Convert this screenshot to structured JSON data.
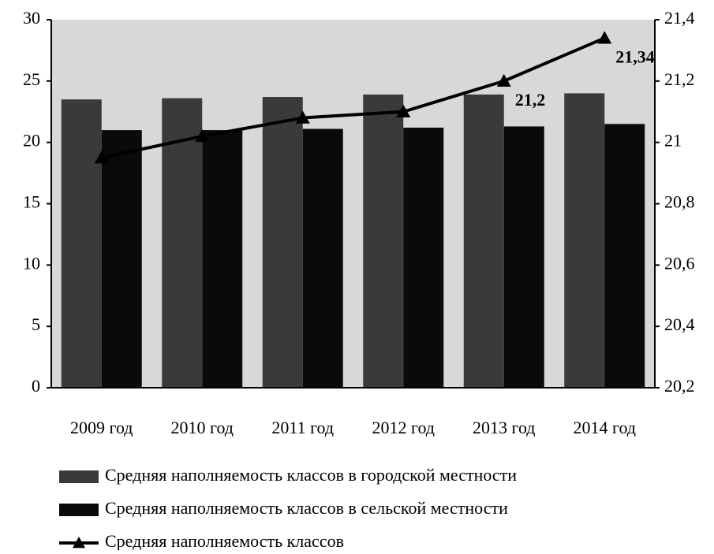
{
  "chart_data": {
    "type": "bar_line",
    "categories": [
      "2009 год",
      "2010 год",
      "2011 год",
      "2012 год",
      "2013 год",
      "2014 год"
    ],
    "series": [
      {
        "name": "Средняя наполняемость классов в городской местности",
        "color": "#3a3a3a",
        "values": [
          23.5,
          23.6,
          23.7,
          23.9,
          23.9,
          24.0
        ]
      },
      {
        "name": "Средняя наполняемость классов в сельской местности",
        "color": "#0a0a0a",
        "values": [
          21.0,
          21.0,
          21.1,
          21.2,
          21.3,
          21.5
        ]
      },
      {
        "name": "Средняя наполняемость классов",
        "color": "#000000",
        "axis": "y2",
        "values": [
          20.95,
          21.02,
          21.08,
          21.1,
          21.2,
          21.34
        ],
        "value_labels": [
          null,
          null,
          null,
          null,
          "21,2",
          "21,34"
        ]
      }
    ],
    "ylim": [
      0,
      30
    ],
    "yticks": [
      0,
      5,
      10,
      15,
      20,
      25,
      30
    ],
    "y2lim": [
      20.2,
      21.4
    ],
    "y2ticks": [
      {
        "value": 20.2,
        "label": "20,2"
      },
      {
        "value": 20.4,
        "label": "20,4"
      },
      {
        "value": 20.6,
        "label": "20,6"
      },
      {
        "value": 20.8,
        "label": "20,8"
      },
      {
        "value": 21,
        "label": "21"
      },
      {
        "value": 21.2,
        "label": "21,2"
      },
      {
        "value": 21.4,
        "label": "21,4"
      }
    ],
    "grid": false
  }
}
